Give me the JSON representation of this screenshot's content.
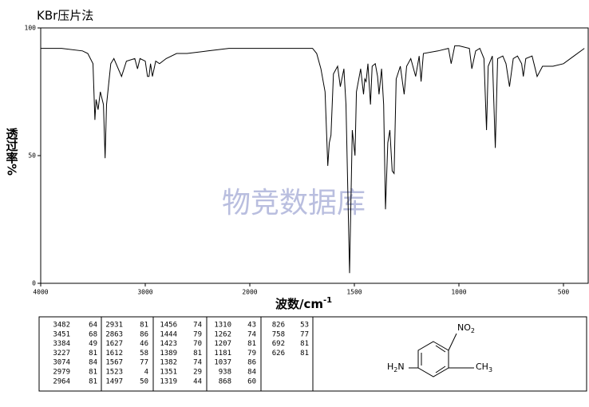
{
  "chart_data": {
    "type": "line",
    "title": "KBr压片法",
    "y_label": "透过率%",
    "x_label": "波数/cm",
    "x_label_sup": "-1",
    "watermark": "物竞数据库",
    "color": "#000000",
    "xlim": [
      4000,
      400
    ],
    "xticks": [
      4000,
      3000,
      2000,
      1500,
      1000,
      500
    ],
    "ylim": [
      0,
      100
    ],
    "yticks": [
      0,
      50,
      100
    ],
    "x": [
      4000,
      3800,
      3600,
      3550,
      3500,
      3482,
      3470,
      3451,
      3430,
      3400,
      3384,
      3370,
      3330,
      3300,
      3227,
      3180,
      3100,
      3074,
      3050,
      3000,
      2979,
      2964,
      2950,
      2931,
      2900,
      2863,
      2800,
      2700,
      2600,
      2400,
      2200,
      2000,
      1900,
      1800,
      1700,
      1680,
      1660,
      1640,
      1627,
      1620,
      1612,
      1600,
      1580,
      1567,
      1550,
      1540,
      1523,
      1510,
      1497,
      1490,
      1470,
      1456,
      1450,
      1444,
      1435,
      1423,
      1415,
      1400,
      1389,
      1382,
      1370,
      1360,
      1351,
      1340,
      1330,
      1319,
      1310,
      1300,
      1280,
      1262,
      1250,
      1230,
      1207,
      1190,
      1181,
      1170,
      1100,
      1050,
      1037,
      1020,
      1000,
      950,
      938,
      920,
      900,
      880,
      868,
      860,
      840,
      826,
      815,
      790,
      775,
      758,
      740,
      720,
      700,
      692,
      680,
      650,
      626,
      600,
      550,
      500,
      450,
      400
    ],
    "values": [
      92,
      92,
      91,
      90,
      86,
      64,
      72,
      68,
      75,
      70,
      49,
      70,
      86,
      88,
      81,
      87,
      88,
      84,
      88,
      87,
      81,
      81,
      86,
      81,
      87,
      86,
      88,
      90,
      90,
      91,
      92,
      92,
      92,
      92,
      92,
      90,
      84,
      75,
      46,
      55,
      58,
      82,
      85,
      77,
      84,
      70,
      4,
      60,
      50,
      75,
      84,
      74,
      80,
      79,
      86,
      70,
      85,
      86,
      81,
      74,
      84,
      70,
      29,
      55,
      60,
      44,
      43,
      80,
      85,
      74,
      85,
      88,
      81,
      89,
      79,
      90,
      91,
      92,
      86,
      93,
      93,
      92,
      84,
      91,
      92,
      88,
      60,
      85,
      89,
      53,
      88,
      89,
      86,
      77,
      88,
      89,
      86,
      81,
      88,
      89,
      81,
      85,
      85,
      86,
      89,
      92
    ]
  },
  "peak_table": {
    "columns": [
      [
        [
          "3482",
          "64"
        ],
        [
          "3451",
          "68"
        ],
        [
          "3384",
          "49"
        ],
        [
          "3227",
          "81"
        ],
        [
          "3074",
          "84"
        ],
        [
          "2979",
          "81"
        ],
        [
          "2964",
          "81"
        ]
      ],
      [
        [
          "2931",
          "81"
        ],
        [
          "2863",
          "86"
        ],
        [
          "1627",
          "46"
        ],
        [
          "1612",
          "58"
        ],
        [
          "1567",
          "77"
        ],
        [
          "1523",
          "4"
        ],
        [
          "1497",
          "50"
        ]
      ],
      [
        [
          "1456",
          "74"
        ],
        [
          "1444",
          "79"
        ],
        [
          "1423",
          "70"
        ],
        [
          "1389",
          "81"
        ],
        [
          "1382",
          "74"
        ],
        [
          "1351",
          "29"
        ],
        [
          "1319",
          "44"
        ]
      ],
      [
        [
          "1310",
          "43"
        ],
        [
          "1262",
          "74"
        ],
        [
          "1207",
          "81"
        ],
        [
          "1181",
          "79"
        ],
        [
          "1037",
          "86"
        ],
        [
          "938",
          "84"
        ],
        [
          "868",
          "60"
        ]
      ],
      [
        [
          "826",
          "53"
        ],
        [
          "758",
          "77"
        ],
        [
          "692",
          "81"
        ],
        [
          "626",
          "81"
        ]
      ]
    ]
  },
  "structure": {
    "nitro": [
      "NO",
      "2"
    ],
    "amine": [
      "H",
      "2",
      "N"
    ],
    "methyl": [
      "CH",
      "3"
    ]
  }
}
